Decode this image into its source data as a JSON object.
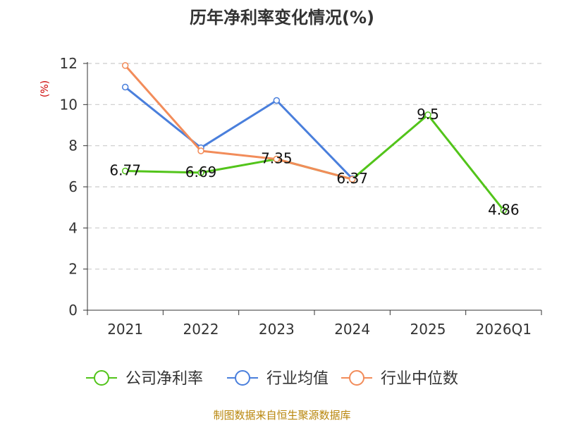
{
  "chart_data": {
    "type": "line",
    "title": "历年净利率变化情况(%)",
    "ylabel": "(%)",
    "xlabel": "",
    "categories": [
      "2021",
      "2022",
      "2023",
      "2024",
      "2025",
      "2026Q1"
    ],
    "ylim": [
      0,
      12
    ],
    "yticks": [
      0,
      2,
      4,
      6,
      8,
      10,
      12
    ],
    "grid": true,
    "legend_position": "bottom",
    "series": [
      {
        "name": "公司净利率",
        "color": "#52c41a",
        "values": [
          6.77,
          6.69,
          7.35,
          6.37,
          9.5,
          4.86
        ],
        "labels": [
          "6.77",
          "6.69",
          "7.35",
          "6.37",
          "9.5",
          "4.86"
        ]
      },
      {
        "name": "行业均值",
        "color": "#4a7fdc",
        "values": [
          10.85,
          7.9,
          10.2,
          6.4,
          null,
          null
        ]
      },
      {
        "name": "行业中位数",
        "color": "#f28c5a",
        "values": [
          11.9,
          7.75,
          7.35,
          6.37,
          null,
          null
        ]
      }
    ]
  },
  "footer": {
    "source": "制图数据来自恒生聚源数据库"
  }
}
